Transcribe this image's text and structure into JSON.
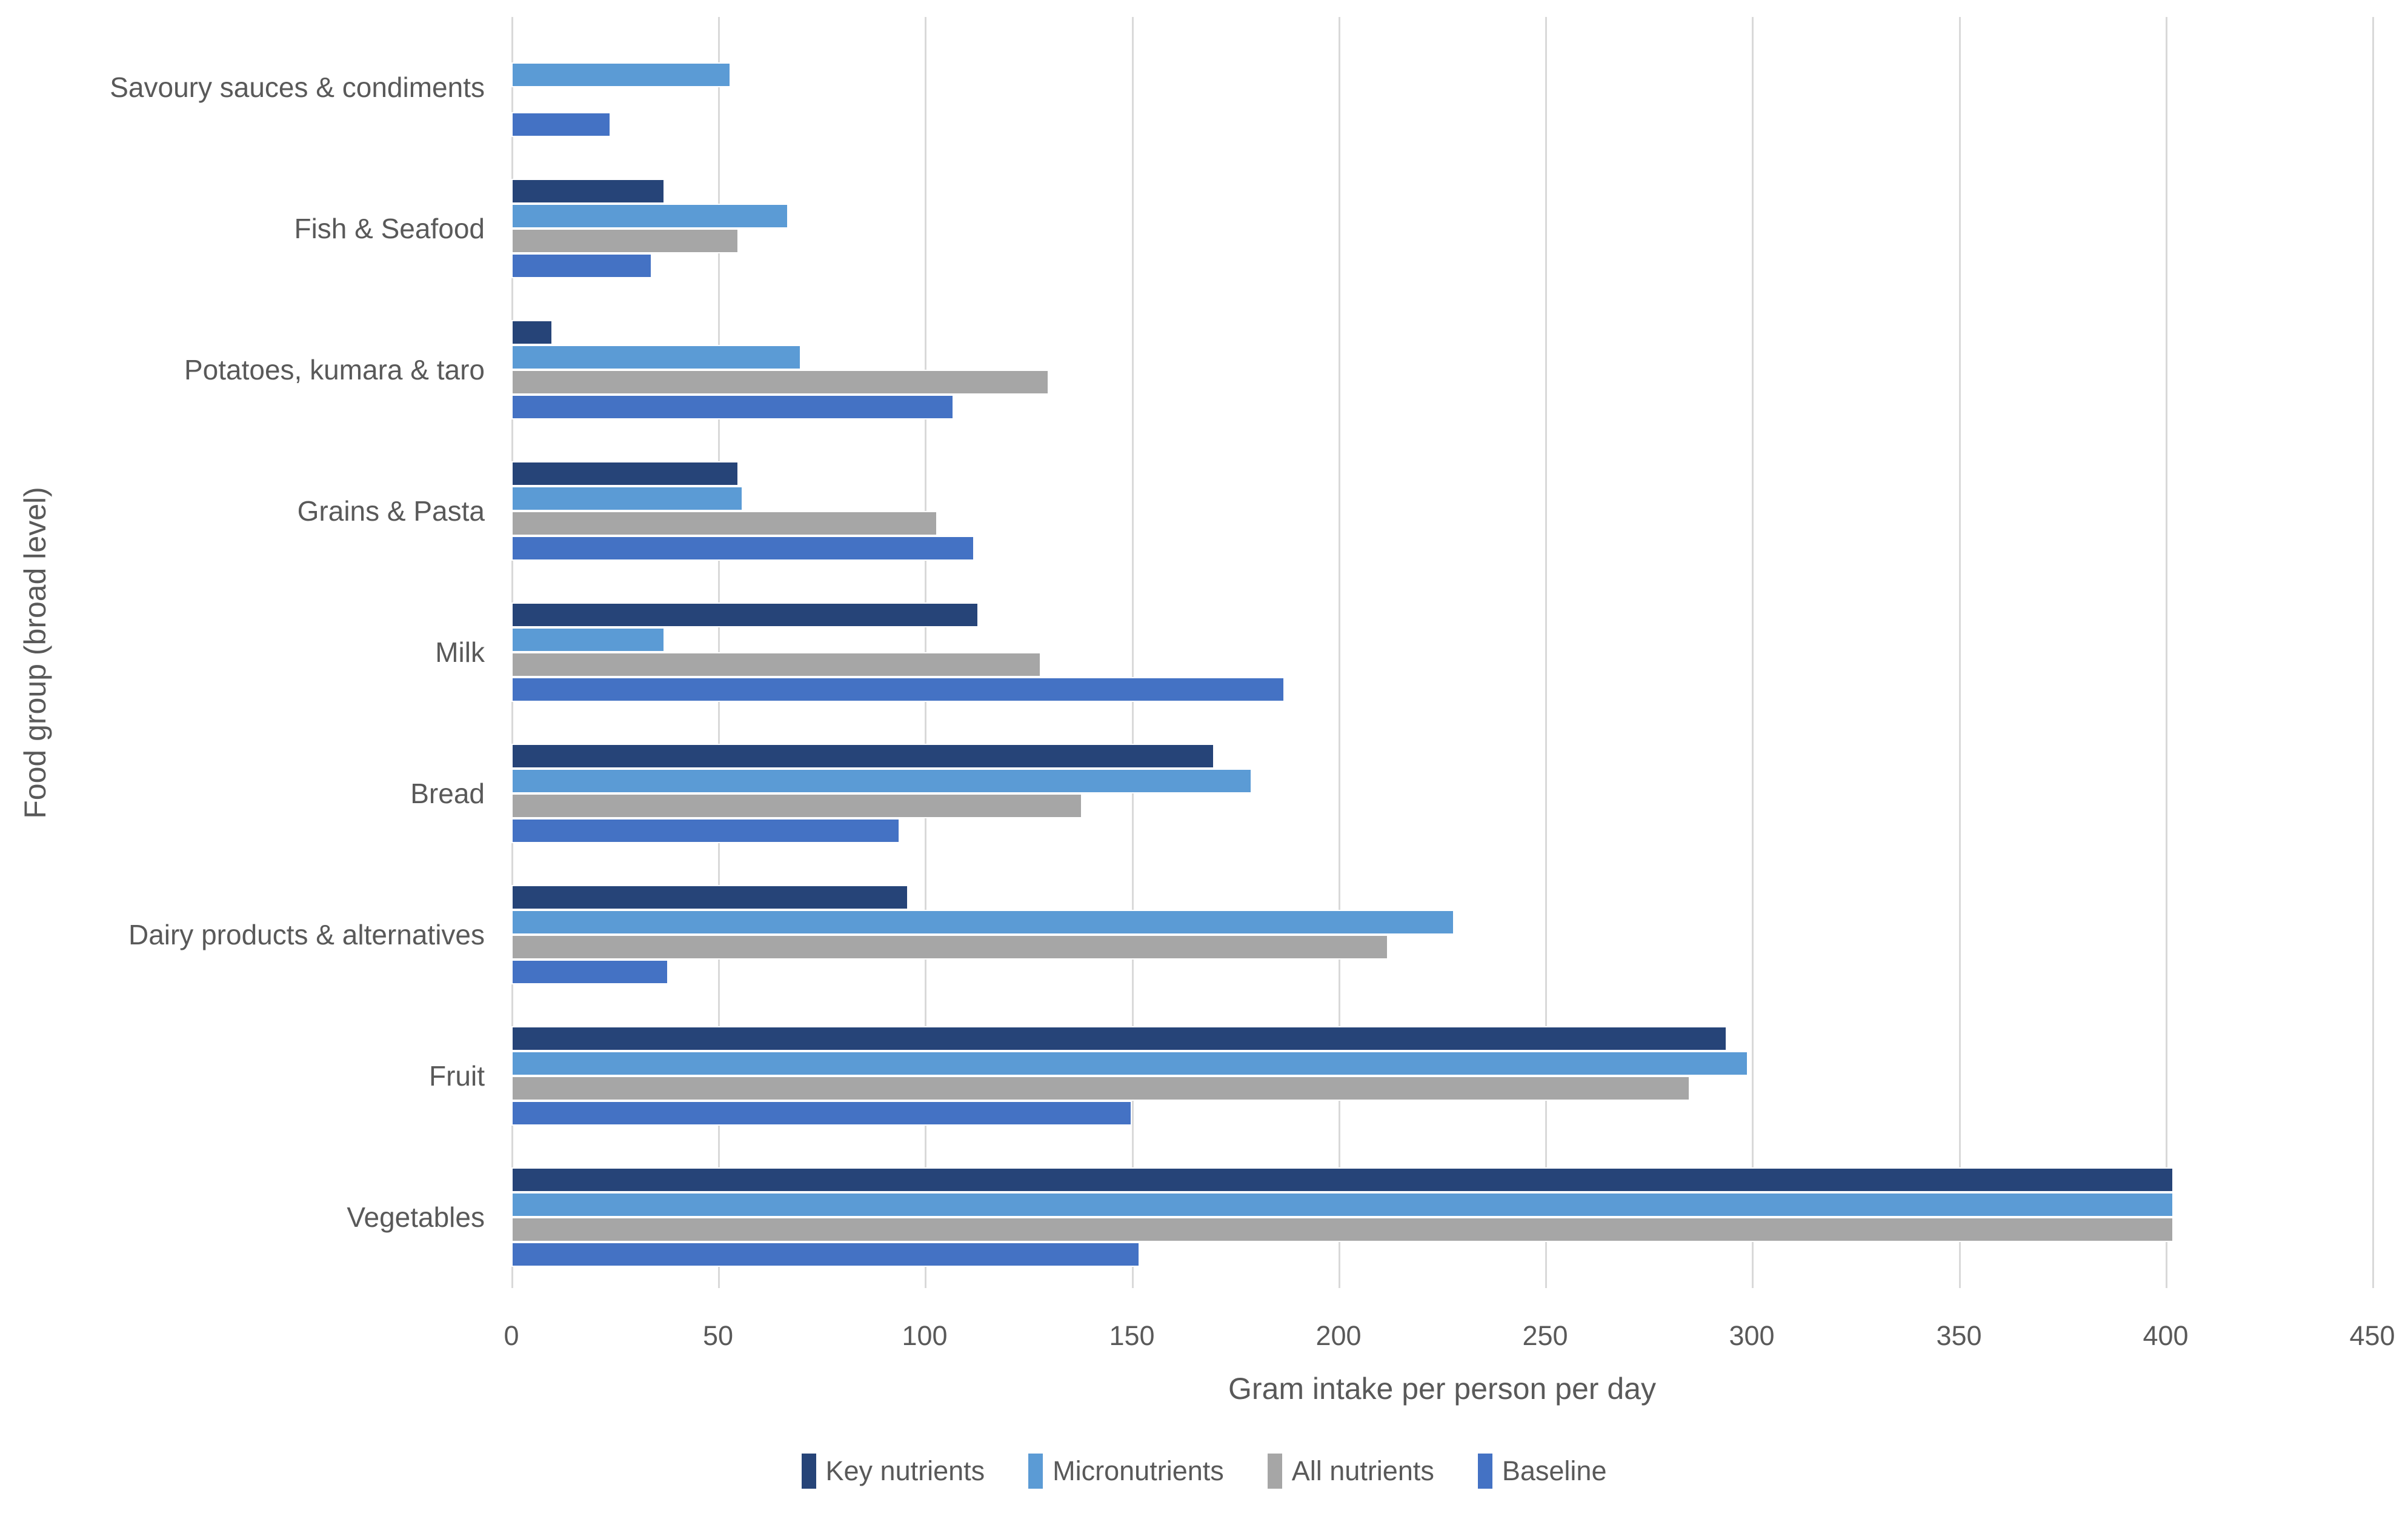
{
  "chart_data": {
    "type": "bar",
    "orientation": "horizontal",
    "xlabel": "Gram intake per person per day",
    "ylabel": "Food group (broad level)",
    "xlim": [
      0,
      450
    ],
    "x_ticks": [
      0,
      50,
      100,
      150,
      200,
      250,
      300,
      350,
      400,
      450
    ],
    "grid": "vertical",
    "legend_position": "bottom",
    "categories": [
      "Savoury sauces & condiments",
      "Fish & Seafood",
      "Potatoes, kumara & taro",
      "Grains & Pasta",
      "Milk",
      "Bread",
      "Dairy products & alternatives",
      "Fruit",
      "Vegetables"
    ],
    "series": [
      {
        "name": "Key nutrients",
        "color": "#264478",
        "values": [
          0,
          37,
          10,
          55,
          113,
          170,
          96,
          294,
          402
        ]
      },
      {
        "name": "Micronutrients",
        "color": "#5B9BD5",
        "values": [
          53,
          67,
          70,
          56,
          37,
          179,
          228,
          299,
          402
        ]
      },
      {
        "name": "All nutrients",
        "color": "#A6A6A6",
        "values": [
          0,
          55,
          130,
          103,
          128,
          138,
          212,
          285,
          402
        ]
      },
      {
        "name": "Baseline",
        "color": "#4472C4",
        "values": [
          24,
          34,
          107,
          112,
          187,
          94,
          38,
          150,
          152
        ]
      }
    ],
    "colors": {
      "gridline": "#D9D9D9",
      "text": "#595959",
      "background": "#FFFFFF"
    }
  }
}
